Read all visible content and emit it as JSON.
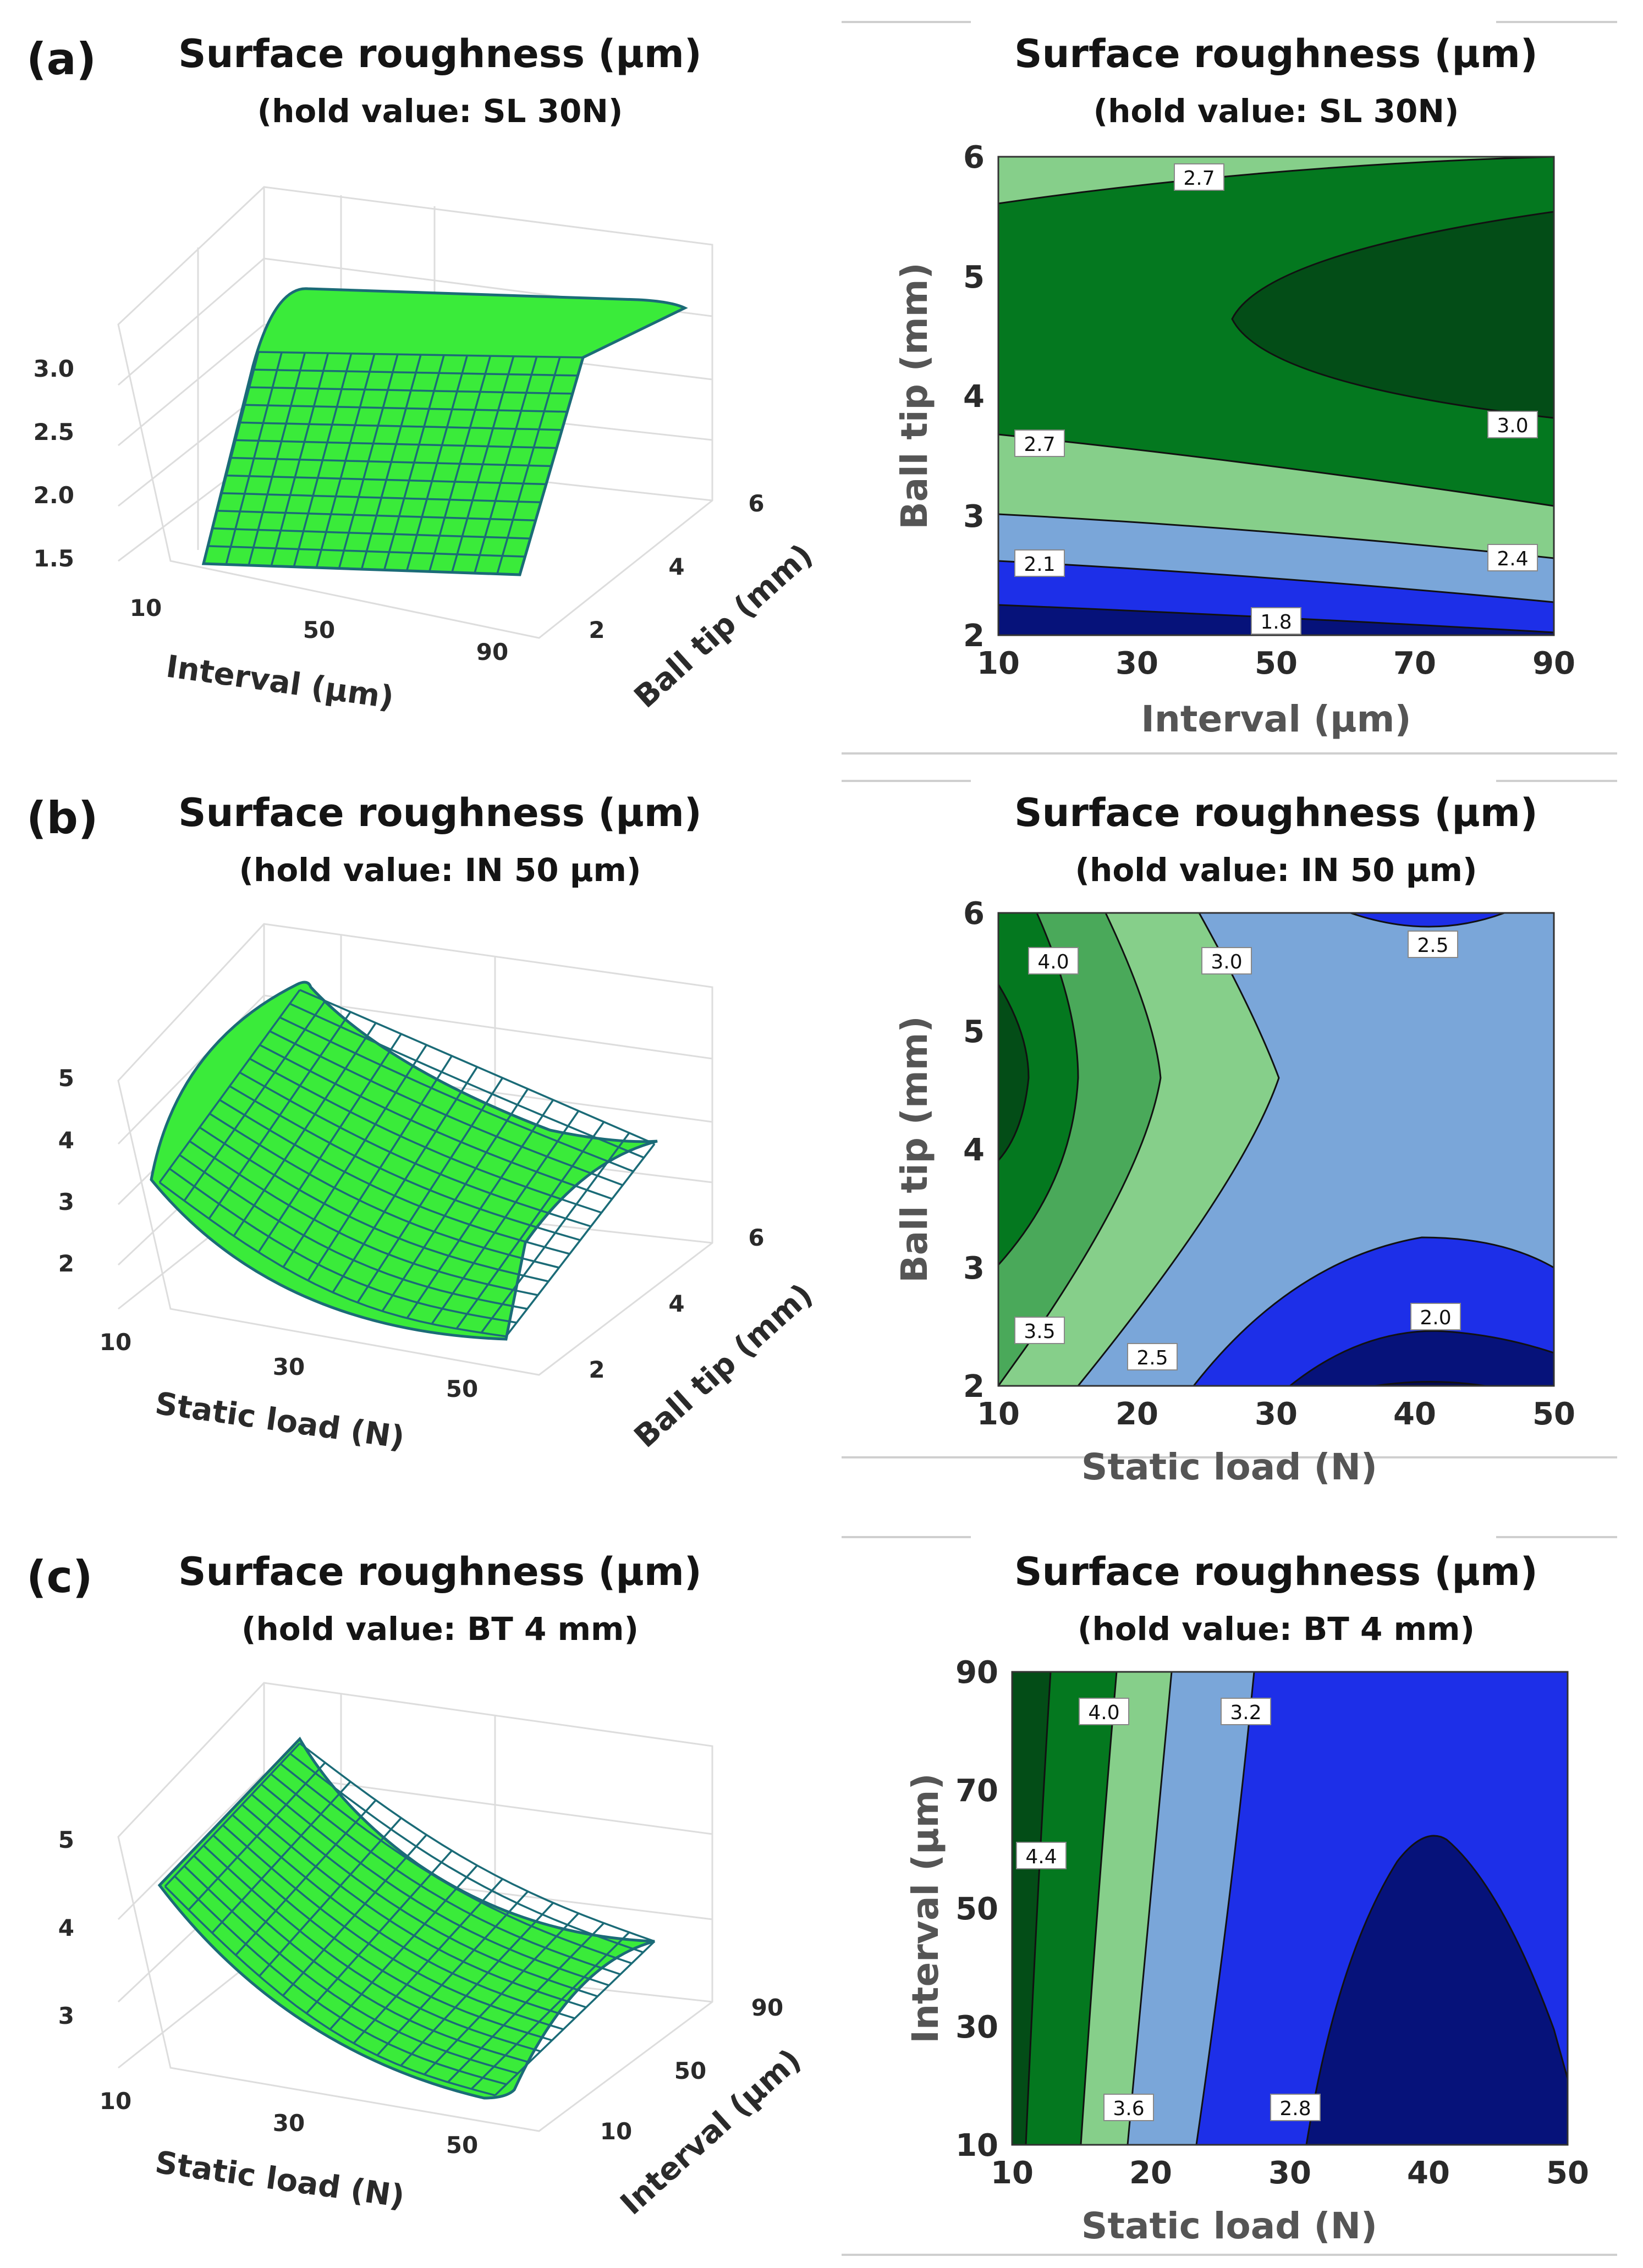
{
  "panel_labels": [
    "(a)",
    "(b)",
    "(c)"
  ],
  "chart_data": [
    {
      "id": "a-surface",
      "type": "surface3d",
      "title": "Surface roughness (μm)",
      "subtitle": "(hold value: SL 30N)",
      "xlabel": "Interval (μm)",
      "ylabel": "Ball tip (mm)",
      "xticks": [
        "10",
        "50",
        "90"
      ],
      "yticks": [
        "2",
        "4",
        "6"
      ],
      "zticks": [
        "1.5",
        "2.0",
        "2.5",
        "3.0"
      ],
      "xlim": [
        10,
        90
      ],
      "ylim": [
        2,
        6
      ],
      "zlim": [
        1.5,
        3.1
      ],
      "grid": true,
      "colors": {
        "surface": "#3aeb3a",
        "mesh": "#1b6b77"
      }
    },
    {
      "id": "a-contour",
      "type": "contour",
      "title": "Surface roughness (μm)",
      "subtitle": "(hold value: SL 30N)",
      "xlabel": "Interval (μm)",
      "ylabel": "Ball tip (mm)",
      "xticks": [
        "10",
        "30",
        "50",
        "70",
        "90"
      ],
      "yticks": [
        "2",
        "3",
        "4",
        "5",
        "6"
      ],
      "xlim": [
        10,
        90
      ],
      "ylim": [
        2,
        6
      ],
      "contour_labels": [
        "2.7",
        "3.0",
        "2.7",
        "2.4",
        "2.1",
        "1.8"
      ],
      "levels": [
        1.8,
        2.1,
        2.4,
        2.7,
        3.0
      ],
      "colors": {
        "band1": "#06127a",
        "band2": "#1d2fe8",
        "band3": "#7aa6d9",
        "band4": "#86cf8a",
        "band5": "#04781f",
        "band6": "#034d17"
      }
    },
    {
      "id": "b-surface",
      "type": "surface3d",
      "title": "Surface roughness (μm)",
      "subtitle": "(hold value: IN 50 μm)",
      "xlabel": "Static load (N)",
      "ylabel": "Ball tip (mm)",
      "xticks": [
        "10",
        "30",
        "50"
      ],
      "yticks": [
        "2",
        "4",
        "6"
      ],
      "zticks": [
        "2",
        "3",
        "4",
        "5"
      ],
      "xlim": [
        10,
        50
      ],
      "ylim": [
        2,
        6
      ],
      "zlim": [
        1.5,
        5.3
      ],
      "grid": true,
      "colors": {
        "surface": "#3aeb3a",
        "mesh": "#1b6b77"
      }
    },
    {
      "id": "b-contour",
      "type": "contour",
      "title": "Surface roughness (μm)",
      "subtitle": "(hold value: IN 50 μm)",
      "xlabel": "Static load (N)",
      "ylabel": "Ball tip (mm)",
      "xticks": [
        "10",
        "20",
        "30",
        "40",
        "50"
      ],
      "yticks": [
        "2",
        "3",
        "4",
        "5",
        "6"
      ],
      "xlim": [
        10,
        50
      ],
      "ylim": [
        2,
        6
      ],
      "contour_labels": [
        "4.0",
        "3.0",
        "2.5",
        "3.5",
        "2.5",
        "2.0"
      ],
      "levels": [
        1.5,
        2.0,
        2.5,
        3.0,
        3.5,
        4.0,
        4.5
      ],
      "colors": {
        "band1": "#06127a",
        "band2": "#1d2fe8",
        "band3": "#7aa6d9",
        "band4": "#86cf8a",
        "band5": "#4aa95a",
        "band6": "#04781f",
        "band7": "#034d17"
      }
    },
    {
      "id": "c-surface",
      "type": "surface3d",
      "title": "Surface roughness (μm)",
      "subtitle": "(hold value: BT 4 mm)",
      "xlabel": "Static load (N)",
      "ylabel": "Interval (μm)",
      "xticks": [
        "10",
        "30",
        "50"
      ],
      "yticks": [
        "10",
        "50",
        "90"
      ],
      "zticks": [
        "3",
        "4",
        "5"
      ],
      "xlim": [
        10,
        50
      ],
      "ylim": [
        10,
        90
      ],
      "zlim": [
        2.6,
        5.6
      ],
      "grid": true,
      "colors": {
        "surface": "#3aeb3a",
        "mesh": "#1b6b77"
      }
    },
    {
      "id": "c-contour",
      "type": "contour",
      "title": "Surface roughness (μm)",
      "subtitle": "(hold value: BT 4 mm)",
      "xlabel": "Static load (N)",
      "ylabel": "Interval (μm)",
      "xticks": [
        "10",
        "20",
        "30",
        "40",
        "50"
      ],
      "yticks": [
        "10",
        "30",
        "50",
        "70",
        "90"
      ],
      "xlim": [
        10,
        50
      ],
      "ylim": [
        10,
        90
      ],
      "contour_labels": [
        "4.0",
        "3.2",
        "4.4",
        "3.6",
        "2.8"
      ],
      "levels": [
        2.8,
        3.2,
        3.6,
        4.0,
        4.4
      ],
      "colors": {
        "band1": "#06127a",
        "band2": "#1d2fe8",
        "band3": "#7aa6d9",
        "band4": "#86cf8a",
        "band5": "#04781f",
        "band6": "#034d17"
      }
    }
  ]
}
